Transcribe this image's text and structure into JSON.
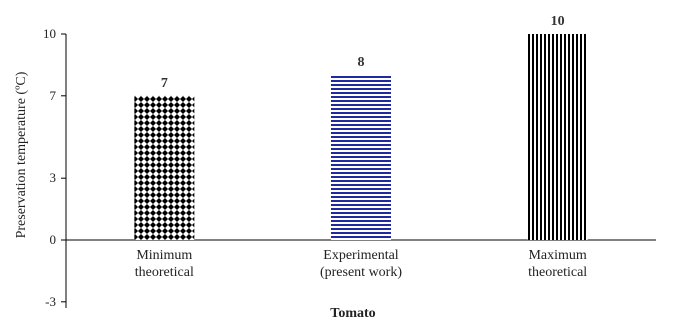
{
  "chart_data": {
    "type": "bar",
    "categories": [
      [
        "Minimum",
        "theoretical"
      ],
      [
        "Experimental",
        "(present work)"
      ],
      [
        "Maximum",
        "theoretical"
      ]
    ],
    "values": [
      7,
      8,
      10
    ],
    "data_labels": [
      "7",
      "8",
      "10"
    ],
    "ylabel": "Preservation temperature (ºC)",
    "xlabel": "Tomato",
    "ylim": [
      -3,
      10
    ],
    "yticks": [
      -3,
      0,
      3,
      7,
      10
    ],
    "ytick_labels": [
      "-3",
      "0",
      "3",
      "7",
      "10"
    ],
    "grid": false,
    "bar_patterns": [
      "diamond-checker",
      "horizontal-lines",
      "vertical-lines"
    ],
    "bar_colors": [
      "#000000",
      "#1f2a9e",
      "#000000"
    ]
  }
}
